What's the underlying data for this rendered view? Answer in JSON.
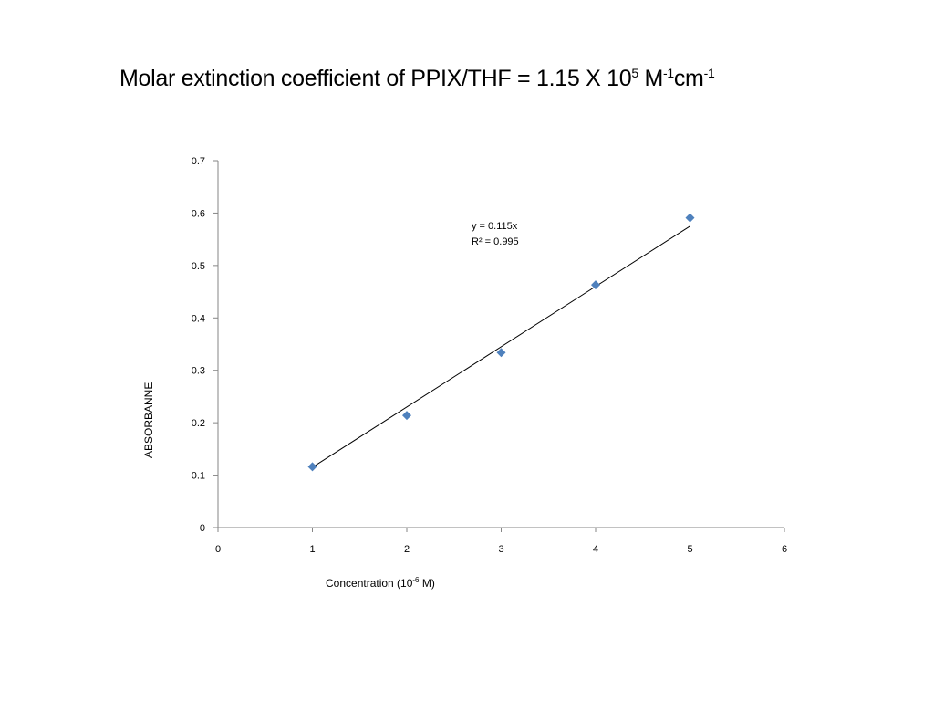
{
  "slide": {
    "title_main": "Molar extinction coefficient of PPIX/THF = 1.15 X 10",
    "title_exp1": "5",
    "title_mid": " M",
    "title_exp2": "-1",
    "title_cm": "cm",
    "title_exp3": "-1"
  },
  "chart_data": {
    "type": "scatter",
    "title": "",
    "xlabel": "Concentration (10-6 M)",
    "xlabel_base": "Concentration (10",
    "xlabel_exp": "-6",
    "xlabel_tail": " M)",
    "ylabel": "ABSORBANNE",
    "xlim": [
      0,
      6
    ],
    "ylim": [
      0,
      0.7
    ],
    "x_ticks": [
      "0",
      "1",
      "2",
      "3",
      "4",
      "5",
      "6"
    ],
    "y_ticks": [
      "0",
      "0.1",
      "0.2",
      "0.3",
      "0.4",
      "0.5",
      "0.6",
      "0.7"
    ],
    "grid": false,
    "legend": "none",
    "series": [
      {
        "name": "Absorbance",
        "marker": "diamond",
        "color": "#4f81bd",
        "x": [
          1,
          2,
          3,
          4,
          5
        ],
        "y": [
          0.116,
          0.214,
          0.334,
          0.463,
          0.591
        ]
      }
    ],
    "trendline": {
      "type": "linear",
      "slope": 0.115,
      "intercept": 0,
      "x_range": [
        1,
        5
      ],
      "color": "#000000",
      "equation": "y = 0.115x",
      "r_squared": "R² = 0.995"
    }
  }
}
